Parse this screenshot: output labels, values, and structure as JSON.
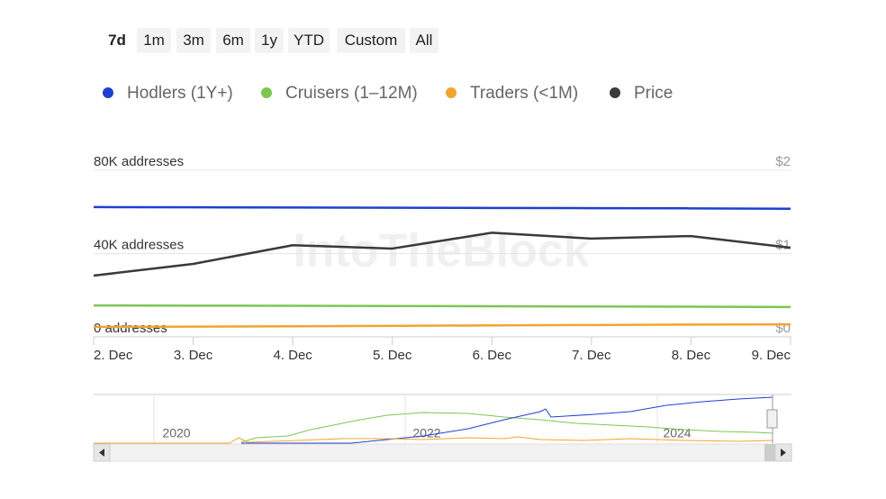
{
  "range_buttons": [
    "7d",
    "1m",
    "3m",
    "6m",
    "1y",
    "YTD",
    "Custom",
    "All"
  ],
  "watermark": "IntoTheBlock",
  "navigator_labels": [
    "2020",
    "2022",
    "2024"
  ],
  "chart_data": {
    "type": "line",
    "categories": [
      "2. Dec",
      "3. Dec",
      "4. Dec",
      "5. Dec",
      "6. Dec",
      "7. Dec",
      "8. Dec",
      "9. Dec"
    ],
    "series": [
      {
        "name": "Hodlers (1Y+)",
        "color": "#1f3fd1",
        "values": [
          62300,
          62200,
          62100,
          62000,
          61900,
          61800,
          61700,
          61500
        ]
      },
      {
        "name": "Cruisers (1–12M)",
        "color": "#7cc652",
        "values": [
          15100,
          15000,
          14900,
          14800,
          14700,
          14600,
          14500,
          14300
        ]
      },
      {
        "name": "Traders (<1M)",
        "color": "#f0a52f",
        "values": [
          4800,
          4900,
          5100,
          5300,
          5500,
          5700,
          5900,
          6000
        ]
      },
      {
        "name": "Price",
        "color": "#3a3a3a",
        "axis": "y2",
        "values": [
          0.735,
          0.876,
          1.1,
          1.06,
          1.25,
          1.18,
          1.21,
          1.07
        ]
      }
    ],
    "ylim": [
      0,
      80000
    ],
    "yticks": [
      {
        "value": 0,
        "label": "0 addresses"
      },
      {
        "value": 40000,
        "label": "40K addresses"
      },
      {
        "value": 80000,
        "label": "80K addresses"
      }
    ],
    "y2lim": [
      0,
      2
    ],
    "y2ticks": [
      {
        "value": 0,
        "label": "$0"
      },
      {
        "value": 1,
        "label": "$1"
      },
      {
        "value": 2,
        "label": "$2"
      }
    ],
    "grid": true
  }
}
